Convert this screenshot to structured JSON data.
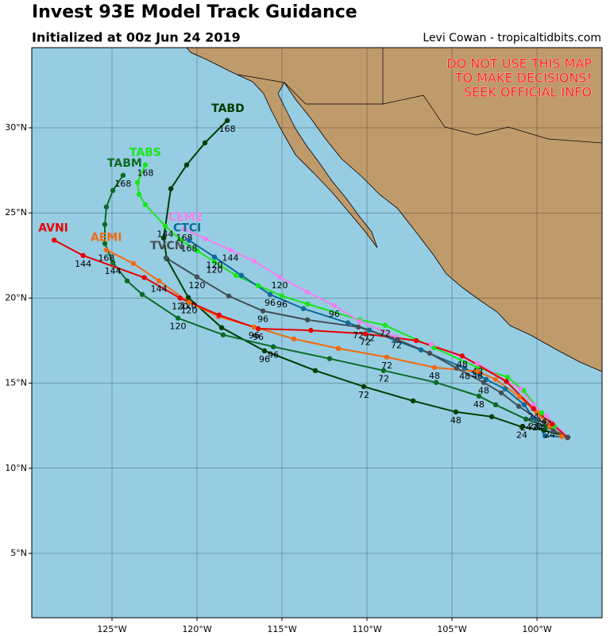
{
  "header": {
    "title": "Invest 93E Model Track Guidance",
    "subtitle": "Initialized at 00z Jun 24 2019",
    "credit": "Levi Cowan - tropicaltidbits.com"
  },
  "warning": [
    "DO NOT USE THIS MAP",
    "TO MAKE DECISIONS!",
    "SEEK OFFICIAL INFO"
  ],
  "map": {
    "xlim": [
      -129.72,
      -96.17
    ],
    "ylim": [
      1.22,
      34.71
    ],
    "grid": true,
    "xticks": [
      {
        "value": -125,
        "label": "125°W"
      },
      {
        "value": -120,
        "label": "120°W"
      },
      {
        "value": -115,
        "label": "115°W"
      },
      {
        "value": -110,
        "label": "110°W"
      },
      {
        "value": -105,
        "label": "105°W"
      },
      {
        "value": -100,
        "label": "100°W"
      }
    ],
    "yticks": [
      {
        "value": 5,
        "label": "5°N"
      },
      {
        "value": 10,
        "label": "10°N"
      },
      {
        "value": 15,
        "label": "15°N"
      },
      {
        "value": 20,
        "label": "20°N"
      },
      {
        "value": 25,
        "label": "25°N"
      },
      {
        "value": 30,
        "label": "30°N"
      }
    ],
    "tracks": [
      {
        "name": "TABD",
        "color": "#003d00",
        "lon": [
          -98.18,
          -99.58,
          -100.89,
          -102.66,
          -104.77,
          -107.29,
          -110.19,
          -113.04,
          -116.03,
          -118.55,
          -120.51,
          -121.78,
          -121.96,
          -121.54,
          -120.61,
          -119.53,
          -118.22
        ],
        "lat": [
          11.82,
          12.24,
          12.43,
          13.03,
          13.31,
          13.96,
          14.8,
          15.74,
          16.9,
          18.26,
          20.03,
          22.31,
          23.53,
          26.42,
          27.82,
          29.12,
          30.43
        ],
        "hours": [
          null,
          null,
          24,
          null,
          48,
          null,
          72,
          null,
          96,
          null,
          120,
          null,
          null,
          null,
          null,
          null,
          168
        ]
      },
      {
        "name": "TABM",
        "color": "#0b6b26",
        "lon": [
          -98.18,
          -99.44,
          -100.65,
          -102.43,
          -103.41,
          -105.93,
          -109.02,
          -112.2,
          -115.51,
          -118.46,
          -121.12,
          -123.22,
          -124.11,
          -124.95,
          -125.42,
          -125.42,
          -125.33,
          -124.95,
          -124.35
        ],
        "lat": [
          11.82,
          12.43,
          12.89,
          13.73,
          14.24,
          15.04,
          15.74,
          16.44,
          17.14,
          17.84,
          18.82,
          20.21,
          21.01,
          22.08,
          23.2,
          24.32,
          25.35,
          26.32,
          27.21
        ],
        "hours": [
          null,
          null,
          24,
          null,
          48,
          null,
          72,
          null,
          96,
          null,
          120,
          null,
          null,
          144,
          null,
          null,
          null,
          null,
          168
        ]
      },
      {
        "name": "TABS",
        "color": "#19e619",
        "lon": [
          -98.18,
          -98.97,
          -99.72,
          -100.79,
          -101.73,
          -103.5,
          -106.07,
          -108.93,
          -110.42,
          -113.5,
          -115.0,
          -116.4,
          -117.71,
          -118.97,
          -119.99,
          -120.98,
          -121.87,
          -123.04,
          -123.41,
          -123.5,
          -123.04
        ],
        "lat": [
          11.82,
          12.47,
          13.26,
          14.57,
          15.36,
          15.92,
          17.09,
          18.4,
          18.72,
          19.65,
          20.12,
          20.73,
          21.33,
          22.13,
          22.78,
          23.43,
          24.23,
          25.49,
          26.09,
          26.79,
          27.82
        ],
        "hours": [
          null,
          null,
          24,
          null,
          null,
          48,
          null,
          72,
          null,
          null,
          96,
          null,
          null,
          120,
          null,
          null,
          144,
          null,
          null,
          null,
          168
        ]
      },
      {
        "name": "CEM2",
        "color": "#f080f0",
        "lon": [
          -98.18,
          -99.44,
          -100.19,
          -100.98,
          -103.5,
          -106.21,
          -108.27,
          -110.42,
          -111.92,
          -113.5,
          -115.14,
          -116.64,
          -118.04,
          -119.49,
          -120.75
        ],
        "lat": [
          11.82,
          13.08,
          13.73,
          14.66,
          16.16,
          17.28,
          17.7,
          18.63,
          19.56,
          20.35,
          21.24,
          22.17,
          22.83,
          23.48,
          24.04
        ],
        "hours": [
          null,
          24,
          null,
          null,
          48,
          null,
          72,
          null,
          96,
          null,
          120,
          null,
          144,
          null,
          168
        ]
      },
      {
        "name": "CTCI",
        "color": "#0e6a9a",
        "lon": [
          -98.18,
          -99.53,
          -100.19,
          -100.75,
          -101.87,
          -102.99,
          -104.25,
          -106.82,
          -108.32,
          -109.86,
          -111.12,
          -113.74,
          -115.7,
          -117.38,
          -118.97,
          -120.47
        ],
        "lat": [
          11.82,
          11.91,
          12.94,
          13.73,
          14.66,
          15.22,
          15.88,
          16.95,
          17.51,
          18.12,
          18.54,
          19.38,
          20.21,
          21.33,
          22.41,
          23.39
        ],
        "hours": [
          null,
          null,
          24,
          null,
          null,
          null,
          48,
          null,
          null,
          72,
          null,
          null,
          96,
          null,
          120,
          168
        ]
      },
      {
        "name": "AEMI",
        "color": "#f26a10",
        "lon": [
          -98.18,
          -98.55,
          -99.25,
          -100.0,
          -101.03,
          -102.43,
          -103.5,
          -106.03,
          -108.83,
          -111.68,
          -114.3,
          -116.64,
          -118.74,
          -120.47,
          -122.24,
          -123.74,
          -125.33
        ],
        "lat": [
          11.82,
          11.87,
          12.47,
          13.26,
          14.2,
          15.22,
          15.69,
          15.92,
          16.53,
          17.04,
          17.6,
          18.3,
          18.91,
          19.75,
          21.01,
          22.03,
          22.83
        ],
        "hours": [
          null,
          null,
          24,
          null,
          null,
          null,
          null,
          48,
          72,
          null,
          null,
          96,
          null,
          120,
          144,
          null,
          168
        ]
      },
      {
        "name": "AVNI",
        "color": "#e60000",
        "lon": [
          -98.2,
          -99.1,
          -100.2,
          -101.8,
          -104.4,
          -107.1,
          -110.1,
          -113.3,
          -116.4,
          -118.7,
          -121.0,
          -123.1,
          -126.7,
          -128.4
        ],
        "lat": [
          11.8,
          12.6,
          13.5,
          15.1,
          16.6,
          17.5,
          17.9,
          18.1,
          18.2,
          19.0,
          20.0,
          21.2,
          22.5,
          23.4
        ],
        "hours": [
          null,
          null,
          24,
          null,
          48,
          null,
          72,
          null,
          96,
          null,
          120,
          null,
          144,
          null
        ]
      },
      {
        "name": "TVCN",
        "color": "#444e56",
        "lon": [
          -98.18,
          -99.02,
          -99.95,
          -101.07,
          -102.1,
          -103.13,
          -104.72,
          -106.31,
          -108.22,
          -110.51,
          -113.5,
          -116.12,
          -118.13,
          -120.0,
          -121.82
        ],
        "lat": [
          11.82,
          12.19,
          12.89,
          13.64,
          14.43,
          15.04,
          15.88,
          16.76,
          17.56,
          18.3,
          18.72,
          19.24,
          20.12,
          21.24,
          22.36
        ],
        "hours": [
          null,
          null,
          24,
          null,
          null,
          48,
          null,
          null,
          null,
          72,
          null,
          96,
          null,
          120,
          null
        ]
      }
    ]
  }
}
